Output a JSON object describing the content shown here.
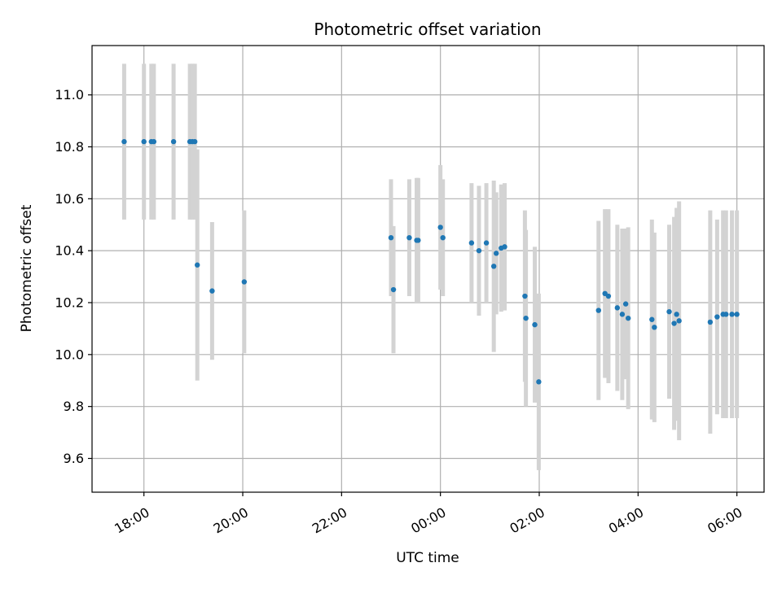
{
  "chart_data": {
    "type": "scatter",
    "title": "Photometric offset variation",
    "xlabel": "UTC time",
    "ylabel": "Photometric offset",
    "grid": true,
    "x_unit": "hours after 00:00 UTC",
    "xlim": [
      -7.05,
      6.55
    ],
    "ylim": [
      9.47,
      11.19
    ],
    "x_ticks": [
      {
        "value": -6,
        "label": "18:00"
      },
      {
        "value": -4,
        "label": "20:00"
      },
      {
        "value": -2,
        "label": "22:00"
      },
      {
        "value": 0,
        "label": "00:00"
      },
      {
        "value": 2,
        "label": "02:00"
      },
      {
        "value": 4,
        "label": "04:00"
      },
      {
        "value": 6,
        "label": "06:00"
      }
    ],
    "y_ticks": [
      {
        "value": 9.6,
        "label": "9.6"
      },
      {
        "value": 9.8,
        "label": "9.8"
      },
      {
        "value": 10.0,
        "label": "10.0"
      },
      {
        "value": 10.2,
        "label": "10.2"
      },
      {
        "value": 10.4,
        "label": "10.4"
      },
      {
        "value": 10.6,
        "label": "10.6"
      },
      {
        "value": 10.8,
        "label": "10.8"
      },
      {
        "value": 11.0,
        "label": "11.0"
      }
    ],
    "colors": {
      "point": "#1f77b4",
      "errorbar": "#d3d3d3",
      "grid": "#b0b0b0"
    },
    "series": [
      {
        "points": [
          {
            "x": -6.4,
            "y": 10.82,
            "err": 0.3
          },
          {
            "x": -6.0,
            "y": 10.82,
            "err": 0.3
          },
          {
            "x": -5.85,
            "y": 10.82,
            "err": 0.3
          },
          {
            "x": -5.8,
            "y": 10.82,
            "err": 0.3
          },
          {
            "x": -5.4,
            "y": 10.82,
            "err": 0.3
          },
          {
            "x": -5.07,
            "y": 10.82,
            "err": 0.3
          },
          {
            "x": -5.02,
            "y": 10.82,
            "err": 0.3
          },
          {
            "x": -4.97,
            "y": 10.82,
            "err": 0.3
          },
          {
            "x": -4.92,
            "y": 10.345,
            "err": 0.445
          },
          {
            "x": -4.62,
            "y": 10.245,
            "err": 0.265
          },
          {
            "x": -3.97,
            "y": 10.28,
            "err": 0.275
          },
          {
            "x": -1.0,
            "y": 10.45,
            "err": 0.225
          },
          {
            "x": -0.95,
            "y": 10.25,
            "err": 0.245
          },
          {
            "x": -0.63,
            "y": 10.45,
            "err": 0.225
          },
          {
            "x": -0.48,
            "y": 10.44,
            "err": 0.24
          },
          {
            "x": -0.45,
            "y": 10.44,
            "err": 0.24
          },
          {
            "x": 0.0,
            "y": 10.49,
            "err": 0.24
          },
          {
            "x": 0.05,
            "y": 10.45,
            "err": 0.225
          },
          {
            "x": 0.63,
            "y": 10.43,
            "err": 0.23
          },
          {
            "x": 0.78,
            "y": 10.4,
            "err": 0.25
          },
          {
            "x": 0.93,
            "y": 10.43,
            "err": 0.23
          },
          {
            "x": 1.08,
            "y": 10.34,
            "err": 0.33
          },
          {
            "x": 1.13,
            "y": 10.39,
            "err": 0.235
          },
          {
            "x": 1.23,
            "y": 10.41,
            "err": 0.245
          },
          {
            "x": 1.3,
            "y": 10.415,
            "err": 0.245
          },
          {
            "x": 1.71,
            "y": 10.225,
            "err": 0.33
          },
          {
            "x": 1.73,
            "y": 10.14,
            "err": 0.34
          },
          {
            "x": 1.91,
            "y": 10.115,
            "err": 0.3
          },
          {
            "x": 1.99,
            "y": 9.895,
            "err": 0.34
          },
          {
            "x": 3.2,
            "y": 10.17,
            "err": 0.345
          },
          {
            "x": 3.33,
            "y": 10.235,
            "err": 0.325
          },
          {
            "x": 3.4,
            "y": 10.225,
            "err": 0.335
          },
          {
            "x": 3.58,
            "y": 10.18,
            "err": 0.32
          },
          {
            "x": 3.68,
            "y": 10.155,
            "err": 0.33
          },
          {
            "x": 3.75,
            "y": 10.195,
            "err": 0.29
          },
          {
            "x": 3.8,
            "y": 10.14,
            "err": 0.35
          },
          {
            "x": 4.28,
            "y": 10.135,
            "err": 0.385
          },
          {
            "x": 4.33,
            "y": 10.105,
            "err": 0.365
          },
          {
            "x": 4.63,
            "y": 10.165,
            "err": 0.335
          },
          {
            "x": 4.73,
            "y": 10.12,
            "err": 0.41
          },
          {
            "x": 4.78,
            "y": 10.155,
            "err": 0.41
          },
          {
            "x": 4.83,
            "y": 10.13,
            "err": 0.46
          },
          {
            "x": 5.46,
            "y": 10.125,
            "err": 0.43
          },
          {
            "x": 5.6,
            "y": 10.145,
            "err": 0.375
          },
          {
            "x": 5.72,
            "y": 10.155,
            "err": 0.4
          },
          {
            "x": 5.78,
            "y": 10.155,
            "err": 0.4
          },
          {
            "x": 5.9,
            "y": 10.155,
            "err": 0.4
          },
          {
            "x": 6.0,
            "y": 10.155,
            "err": 0.4
          }
        ]
      }
    ]
  }
}
